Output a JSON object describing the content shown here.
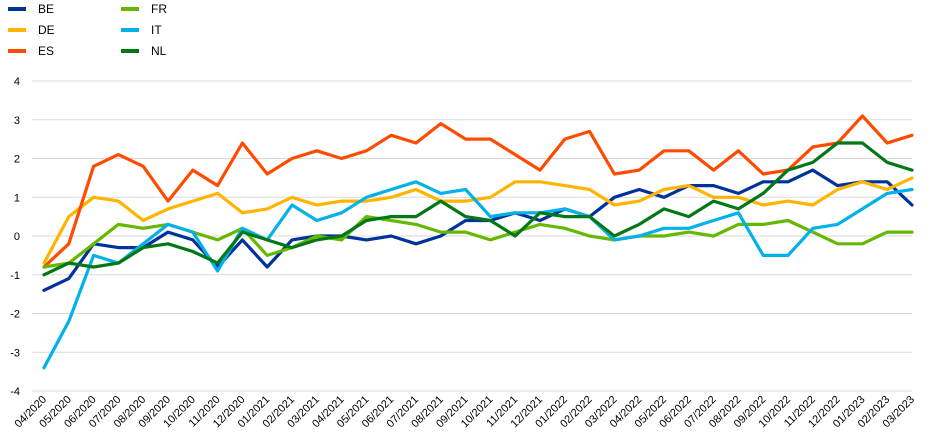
{
  "chart_data": {
    "type": "line",
    "title": "",
    "xlabel": "",
    "ylabel": "",
    "ylim": [
      -4,
      4
    ],
    "yticks": [
      "4",
      "3",
      "2",
      "1",
      "0",
      "-1",
      "-2",
      "-3",
      "-4"
    ],
    "grid": "horizontal",
    "legend_position": "top-left",
    "categories": [
      "04/2020",
      "05/2020",
      "06/2020",
      "07/2020",
      "08/2020",
      "09/2020",
      "10/2020",
      "11/2020",
      "12/2020",
      "01/2021",
      "02/2021",
      "03/2021",
      "04/2021",
      "05/2021",
      "06/2021",
      "07/2021",
      "08/2021",
      "09/2021",
      "10/2021",
      "11/2021",
      "12/2021",
      "01/2022",
      "02/2022",
      "03/2022",
      "04/2022",
      "05/2022",
      "06/2022",
      "07/2022",
      "08/2022",
      "09/2022",
      "10/2022",
      "11/2022",
      "12/2022",
      "01/2023",
      "02/2023",
      "03/2023"
    ],
    "series": [
      {
        "name": "BE",
        "color": "#003299",
        "values": [
          -1.4,
          -1.1,
          -0.2,
          -0.3,
          -0.3,
          0.1,
          -0.1,
          -0.8,
          -0.1,
          -0.8,
          -0.1,
          0.0,
          0.0,
          -0.1,
          0.0,
          -0.2,
          0.0,
          0.4,
          0.4,
          0.6,
          0.4,
          0.7,
          0.5,
          1.0,
          1.2,
          1.0,
          1.3,
          1.3,
          1.1,
          1.4,
          1.4,
          1.7,
          1.3,
          1.4,
          1.4,
          0.8
        ]
      },
      {
        "name": "DE",
        "color": "#FFB400",
        "values": [
          -0.7,
          0.5,
          1.0,
          0.9,
          0.4,
          0.7,
          0.9,
          1.1,
          0.6,
          0.7,
          1.0,
          0.8,
          0.9,
          0.9,
          1.0,
          1.2,
          0.9,
          0.9,
          1.0,
          1.4,
          1.4,
          1.3,
          1.2,
          0.8,
          0.9,
          1.2,
          1.3,
          1.0,
          1.0,
          0.8,
          0.9,
          0.8,
          1.2,
          1.4,
          1.2,
          1.5
        ]
      },
      {
        "name": "ES",
        "color": "#FF4B00",
        "values": [
          -0.8,
          -0.2,
          1.8,
          2.1,
          1.8,
          0.9,
          1.7,
          1.3,
          2.4,
          1.6,
          2.0,
          2.2,
          2.0,
          2.2,
          2.6,
          2.4,
          2.9,
          2.5,
          2.5,
          2.1,
          1.7,
          2.5,
          2.7,
          1.6,
          1.7,
          2.2,
          2.2,
          1.7,
          2.2,
          1.6,
          1.7,
          2.3,
          2.4,
          3.1,
          2.4,
          2.6
        ]
      },
      {
        "name": "FR",
        "color": "#65B800",
        "values": [
          -0.8,
          -0.7,
          -0.2,
          0.3,
          0.2,
          0.3,
          0.1,
          -0.1,
          0.2,
          -0.5,
          -0.3,
          0.0,
          -0.1,
          0.5,
          0.4,
          0.3,
          0.1,
          0.1,
          -0.1,
          0.1,
          0.3,
          0.2,
          0.0,
          -0.1,
          0.0,
          0.0,
          0.1,
          0.0,
          0.3,
          0.3,
          0.4,
          0.1,
          -0.2,
          -0.2,
          0.1,
          0.1
        ]
      },
      {
        "name": "IT",
        "color": "#00B1EA",
        "values": [
          -3.4,
          -2.2,
          -0.5,
          -0.7,
          -0.2,
          0.3,
          0.1,
          -0.9,
          0.2,
          -0.1,
          0.8,
          0.4,
          0.6,
          1.0,
          1.2,
          1.4,
          1.1,
          1.2,
          0.5,
          0.6,
          0.6,
          0.7,
          0.5,
          -0.1,
          0.0,
          0.2,
          0.2,
          0.4,
          0.6,
          -0.5,
          -0.5,
          0.2,
          0.3,
          0.7,
          1.1,
          1.2
        ]
      },
      {
        "name": "NL",
        "color": "#007816",
        "values": [
          -1.0,
          -0.7,
          -0.8,
          -0.7,
          -0.3,
          -0.2,
          -0.4,
          -0.7,
          0.1,
          -0.1,
          -0.3,
          -0.1,
          0.0,
          0.4,
          0.5,
          0.5,
          0.9,
          0.5,
          0.4,
          0.0,
          0.6,
          0.5,
          0.5,
          0.0,
          0.3,
          0.7,
          0.5,
          0.9,
          0.7,
          1.1,
          1.7,
          1.9,
          2.4,
          2.4,
          1.9,
          1.7
        ]
      }
    ]
  }
}
